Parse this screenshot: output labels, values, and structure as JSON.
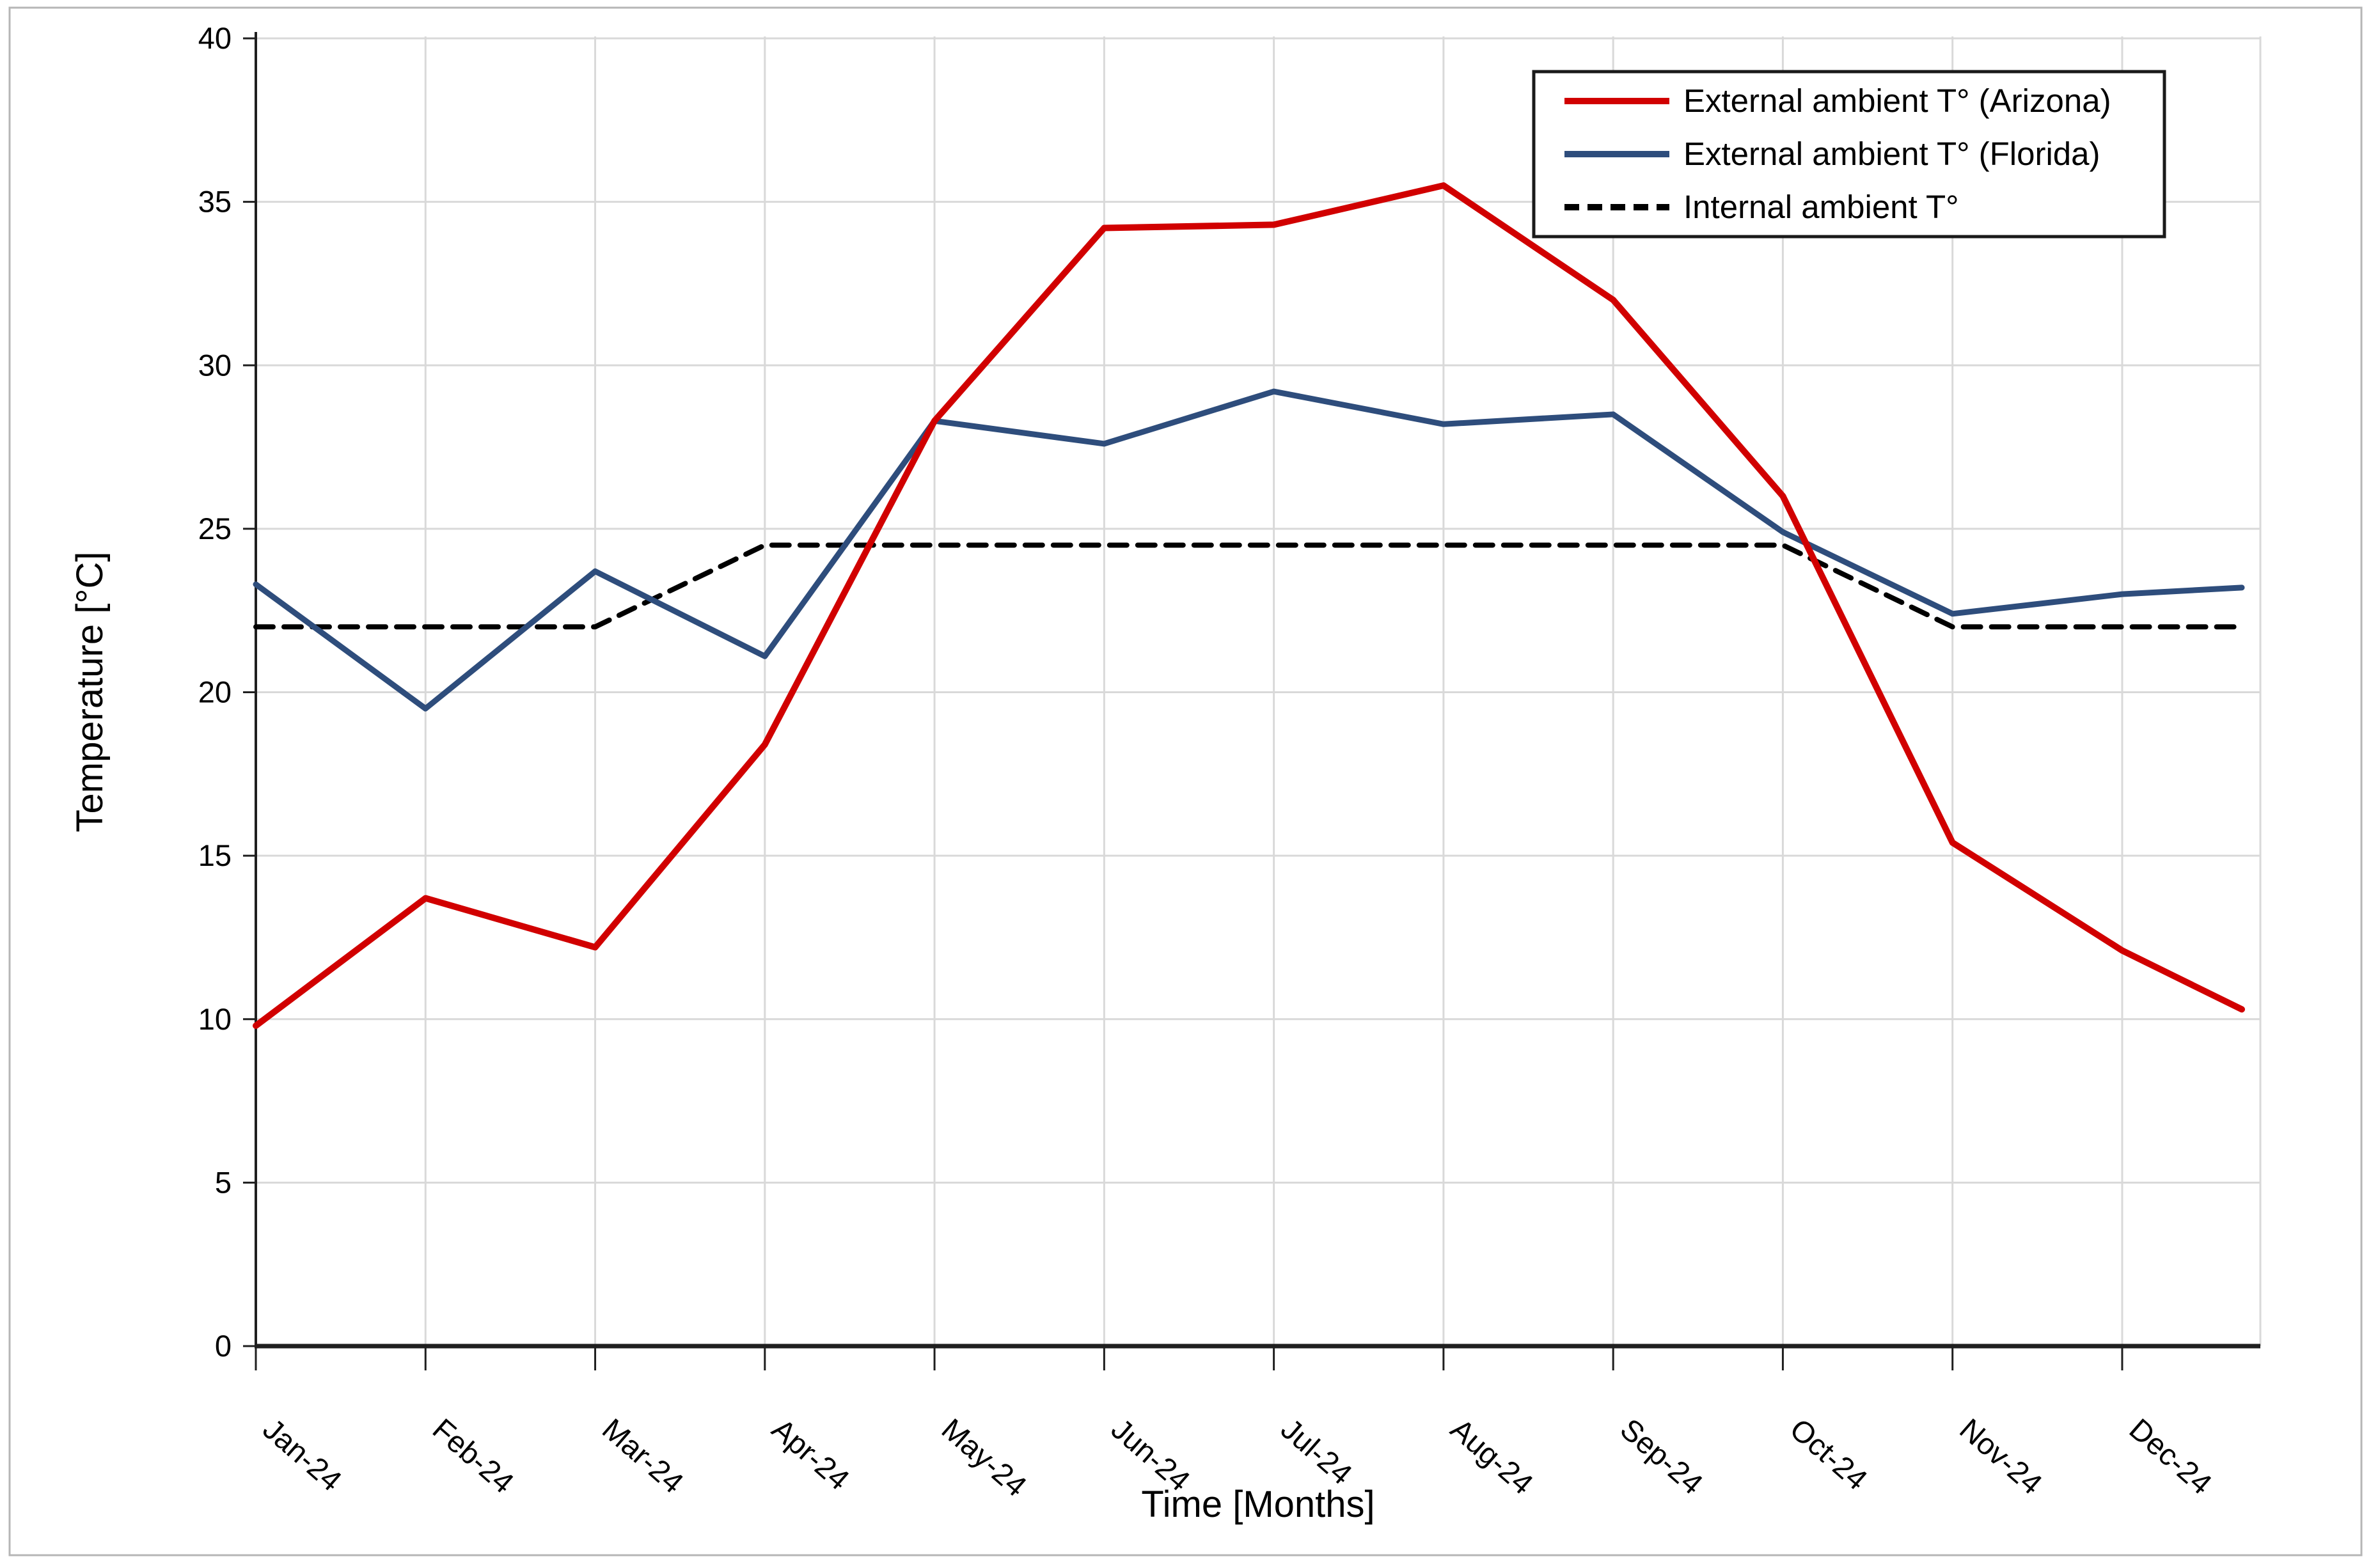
{
  "figure": {
    "background_color": "#ffffff",
    "border_color": "#b6b6b6"
  },
  "chart_data": {
    "type": "line",
    "title": "",
    "xlabel": "Time [Months]",
    "ylabel": "Temperature [°C]",
    "x_categories": [
      "Jan-24",
      "Feb-24",
      "Mar-24",
      "Apr-24",
      "May-24",
      "Jun-24",
      "Jul-24",
      "Aug-24",
      "Sep-24",
      "Oct-24",
      "Nov-24",
      "Dec-24"
    ],
    "ylim": [
      0,
      40
    ],
    "ytick_step": 5,
    "ytick_labels": [
      "0",
      "5",
      "10",
      "15",
      "20",
      "25",
      "30",
      "35",
      "40"
    ],
    "grid": true,
    "legend_position": "top-right",
    "series": [
      {
        "name": "External ambient T° (Arizona)",
        "color": "#d10000",
        "style": "solid",
        "values": [
          9.8,
          13.7,
          12.2,
          18.4,
          28.3,
          34.2,
          34.3,
          35.5,
          32.0,
          26.0,
          15.4,
          12.1
        ],
        "tail_value": 10.3
      },
      {
        "name": "External ambient T° (Florida)",
        "color": "#2e4d7c",
        "style": "solid",
        "values": [
          23.3,
          19.5,
          23.7,
          21.1,
          28.3,
          27.6,
          29.2,
          28.2,
          28.5,
          24.9,
          22.4,
          23.0
        ],
        "tail_value": 23.2
      },
      {
        "name": "Internal ambient T°",
        "color": "#000000",
        "style": "dashed",
        "values": [
          22,
          22,
          22,
          24.5,
          24.5,
          24.5,
          24.5,
          24.5,
          24.5,
          24.5,
          22,
          22
        ],
        "tail_value": 22
      }
    ]
  }
}
